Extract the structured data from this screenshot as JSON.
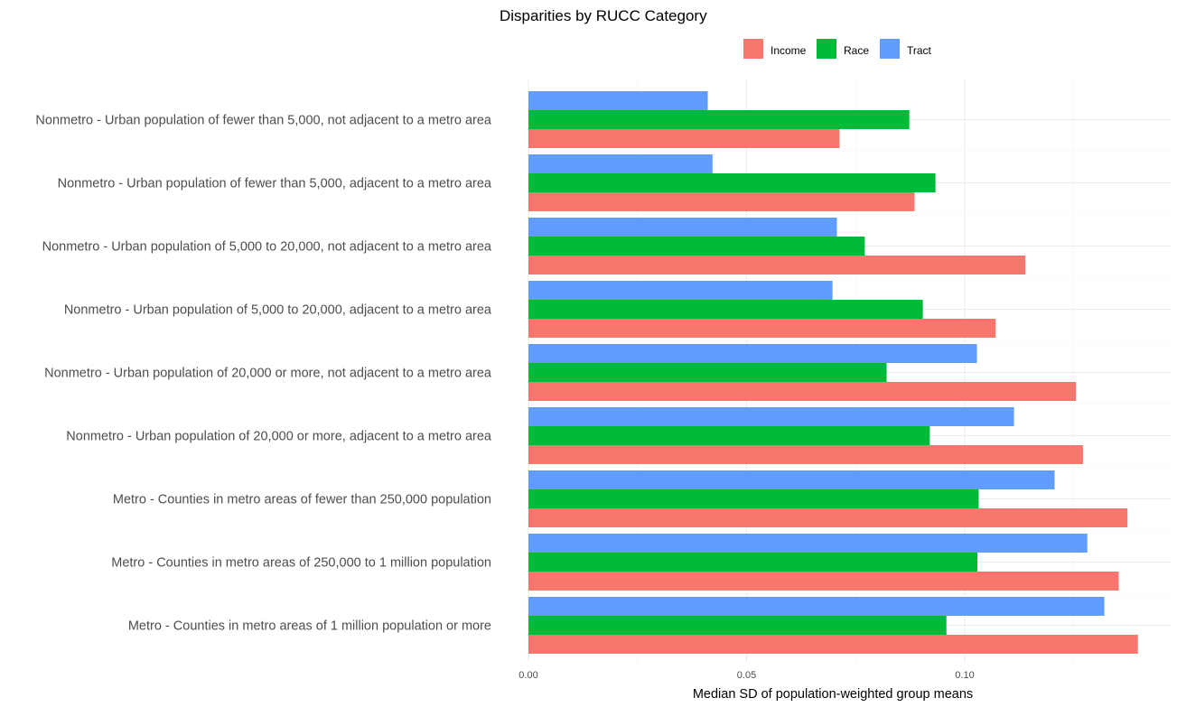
{
  "chart_data": {
    "type": "bar",
    "orientation": "horizontal",
    "title": "Disparities by RUCC Category",
    "xlabel": "Median SD of population-weighted group means",
    "ylabel": "",
    "xlim": [
      0,
      0.1395
    ],
    "x_ticks": [
      0.0,
      0.05,
      0.1
    ],
    "x_tick_labels": [
      "0.00",
      "0.05",
      "0.10"
    ],
    "grid": true,
    "legend_position": "top",
    "categories": [
      "Nonmetro - Urban population of fewer than 5,000, not adjacent to a metro area",
      "Nonmetro - Urban population of fewer than 5,000, adjacent to a metro area",
      "Nonmetro - Urban population of 5,000 to 20,000, not adjacent to a metro area",
      "Nonmetro - Urban population of 5,000 to 20,000, adjacent to a metro area",
      "Nonmetro - Urban population of 20,000 or more, not adjacent to a metro area",
      "Nonmetro - Urban population of 20,000 or more, adjacent to a metro area",
      "Metro - Counties in metro areas of fewer than 250,000 population",
      "Metro - Counties in metro areas of 250,000 to 1 million population",
      "Metro - Counties in metro areas of 1 million population or more"
    ],
    "series": [
      {
        "name": "Income",
        "color": "#F8766D",
        "values": [
          0.0713,
          0.0885,
          0.1139,
          0.1071,
          0.1255,
          0.1271,
          0.1373,
          0.1353,
          0.1397
        ]
      },
      {
        "name": "Race",
        "color": "#00BA38",
        "values": [
          0.0873,
          0.0933,
          0.0771,
          0.0904,
          0.0821,
          0.092,
          0.1032,
          0.1029,
          0.0958
        ]
      },
      {
        "name": "Tract",
        "color": "#619CFF",
        "values": [
          0.0411,
          0.0422,
          0.0707,
          0.0697,
          0.1028,
          0.1113,
          0.1206,
          0.1281,
          0.132
        ]
      }
    ]
  }
}
